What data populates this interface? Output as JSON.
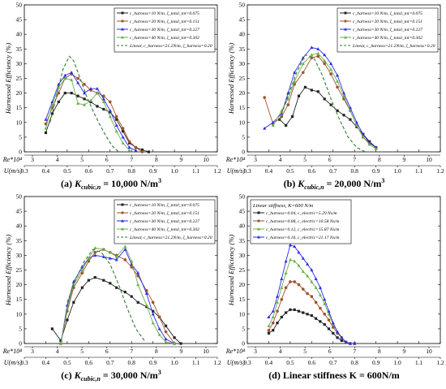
{
  "figure": {
    "panels": [
      {
        "caption_tag": "(a)",
        "caption_sym": "K",
        "caption_sub": "cubic,n",
        "caption_rest": " =    10,000 N/m",
        "caption_sup": "3"
      },
      {
        "caption_tag": "(b)",
        "caption_sym": "K",
        "caption_sub": "cubic,n",
        "caption_rest": " =    20,000 N/m",
        "caption_sup": "3"
      },
      {
        "caption_tag": "(c)",
        "caption_sym": "K",
        "caption_sub": "cubic,n",
        "caption_rest": " =   30,000 N/m",
        "caption_sup": "3"
      },
      {
        "caption_tag": "(d)",
        "caption_sym": "",
        "caption_sub": "",
        "caption_rest": "Linear stiffness K = 600N/m",
        "caption_sup": ""
      }
    ]
  },
  "chart_data": [
    {
      "type": "line",
      "ylabel": "Harnessed Efficiency (%)",
      "ylim": [
        0,
        50
      ],
      "yticks": [
        "0",
        "5",
        "10",
        "15",
        "20",
        "25",
        "30",
        "35",
        "40",
        "45",
        "50"
      ],
      "xlabel_top": "Re*10⁴",
      "xticks_top": [
        "3",
        "4",
        "5",
        "6",
        "7",
        "8",
        "9",
        "10"
      ],
      "xlabel_bottom": "U(m/s)",
      "xticks_bottom": [
        "0.3",
        "0.4",
        "0.5",
        "0.6",
        "0.7",
        "0.8",
        "0.9",
        "1.0",
        "1.1",
        "1.2"
      ],
      "legend_position": "top-right",
      "series": [
        {
          "name": "c_harness=10 N/m, ζ_total_tot=0.075",
          "color": "#222222",
          "marker": "square",
          "x": [
            0.4,
            0.43,
            0.46,
            0.49,
            0.52,
            0.55,
            0.58,
            0.61,
            0.64,
            0.67,
            0.7,
            0.73,
            0.76,
            0.79,
            0.82,
            0.85,
            0.88
          ],
          "y": [
            6.5,
            13,
            17,
            20,
            20,
            19,
            18,
            17,
            15.5,
            14.5,
            13.5,
            11,
            7,
            3,
            1.5,
            0.7,
            0
          ]
        },
        {
          "name": "c_harness=20 N/m, ζ_total_tot=0.151",
          "color": "#a0522d",
          "marker": "circle",
          "x": [
            0.4,
            0.43,
            0.46,
            0.49,
            0.52,
            0.55,
            0.58,
            0.61,
            0.64,
            0.67,
            0.7,
            0.73,
            0.76,
            0.79,
            0.82,
            0.85
          ],
          "y": [
            9.5,
            15,
            20,
            25,
            26.5,
            25,
            23,
            21,
            20,
            19,
            17,
            12,
            8,
            3.5,
            1.5,
            0
          ]
        },
        {
          "name": "c_harness=30 N/m, ζ_total_tot=0.227",
          "color": "#2a2aee",
          "marker": "triangle",
          "x": [
            0.4,
            0.43,
            0.46,
            0.49,
            0.52,
            0.55,
            0.58,
            0.61,
            0.64,
            0.67,
            0.7,
            0.73,
            0.76,
            0.79,
            0.82
          ],
          "y": [
            11,
            17,
            23,
            26,
            27,
            23.5,
            20,
            21.5,
            21.5,
            18,
            14,
            9,
            5,
            1.5,
            0.5
          ]
        },
        {
          "name": "c_harness=40 N/m, ζ_total_tot=0.302",
          "color": "#6ab04c",
          "marker": "triangle",
          "x": [
            0.4,
            0.43,
            0.46,
            0.49,
            0.52,
            0.55,
            0.58,
            0.61,
            0.64,
            0.67,
            0.7,
            0.73,
            0.76,
            0.79
          ],
          "y": [
            8,
            16,
            22,
            25,
            24.5,
            16.5,
            16,
            17.5,
            20,
            17,
            12,
            7,
            3,
            0.5
          ]
        },
        {
          "name": "Linear, c_harness=21.2N/m, ζ_harness=0.20",
          "color": "#2e7d32",
          "dashed": true,
          "x": [
            0.42,
            0.45,
            0.48,
            0.51,
            0.53,
            0.56,
            0.59,
            0.62,
            0.65,
            0.68,
            0.71,
            0.74
          ],
          "y": [
            10,
            19,
            28,
            32.5,
            31,
            25,
            19,
            14,
            9.5,
            5.5,
            2,
            0
          ]
        }
      ]
    },
    {
      "type": "line",
      "ylabel": "Harnessed Efficiency (%)",
      "ylim": [
        0,
        50
      ],
      "yticks": [
        "0",
        "5",
        "10",
        "15",
        "20",
        "25",
        "30",
        "35",
        "40",
        "45",
        "50"
      ],
      "xlabel_top": "Re*10⁴",
      "xticks_top": [
        "3",
        "4",
        "5",
        "6",
        "7",
        "8",
        "9",
        "10"
      ],
      "xlabel_bottom": "U(m/s)",
      "xticks_bottom": [
        "0.3",
        "0.4",
        "0.5",
        "0.6",
        "0.7",
        "0.8",
        "0.9",
        "1.0",
        "1.1",
        "1.2"
      ],
      "legend_position": "top-right",
      "series": [
        {
          "name": "c_harness=10 N/m, ζ_total_tot=0.075",
          "color": "#222222",
          "marker": "square",
          "x": [
            0.45,
            0.48,
            0.51,
            0.54,
            0.57,
            0.6,
            0.63,
            0.66,
            0.69,
            0.72,
            0.75,
            0.78,
            0.81,
            0.84,
            0.87,
            0.9
          ],
          "y": [
            11,
            9,
            12,
            19,
            22,
            21,
            20.5,
            18,
            16,
            14,
            12.5,
            11,
            8.5,
            6,
            3.5,
            1.5
          ]
        },
        {
          "name": "c_harness=20 N/m, ζ_total_tot=0.151",
          "color": "#a0522d",
          "marker": "circle",
          "x": [
            0.38,
            0.42,
            0.46,
            0.49,
            0.52,
            0.56,
            0.6,
            0.63,
            0.66,
            0.69,
            0.72,
            0.75,
            0.78,
            0.81,
            0.84,
            0.87,
            0.9
          ],
          "y": [
            18.5,
            9.5,
            12,
            16,
            23,
            27,
            32,
            32.5,
            30,
            26.5,
            22,
            18,
            14,
            9,
            5,
            3,
            1.5
          ]
        },
        {
          "name": "c_harness=30 N/m, ζ_total_tot=0.227",
          "color": "#2a2aee",
          "marker": "triangle",
          "x": [
            0.38,
            0.42,
            0.46,
            0.49,
            0.52,
            0.56,
            0.6,
            0.63,
            0.66,
            0.69,
            0.72,
            0.75,
            0.78,
            0.81,
            0.84,
            0.87,
            0.9
          ],
          "y": [
            8,
            10,
            13,
            20,
            27,
            32,
            35.5,
            35,
            33,
            30,
            26,
            20,
            15,
            10,
            6,
            3,
            1.5
          ]
        },
        {
          "name": "c_harness=40 N/m, ζ_total_tot=0.302",
          "color": "#6ab04c",
          "marker": "triangle",
          "x": [
            0.42,
            0.46,
            0.49,
            0.52,
            0.56,
            0.6,
            0.63,
            0.66,
            0.69,
            0.72,
            0.75,
            0.78,
            0.81,
            0.84,
            0.87,
            0.9
          ],
          "y": [
            9,
            14,
            18,
            24,
            30,
            33,
            33.5,
            31,
            28,
            24,
            19,
            14,
            9,
            5,
            2.5,
            1
          ]
        },
        {
          "name": "Linear, c_harness=21.2N/m, ζ_harness=0.20",
          "color": "#2e7d32",
          "dashed": true,
          "x": [
            0.45,
            0.49,
            0.53,
            0.57,
            0.61,
            0.65,
            0.69,
            0.73,
            0.77,
            0.81,
            0.85
          ],
          "y": [
            11,
            19,
            27,
            33,
            32,
            26,
            18,
            11,
            5,
            1.5,
            0
          ]
        }
      ]
    },
    {
      "type": "line",
      "ylabel": "Harnessed Efficiency (%)",
      "ylim": [
        0,
        50
      ],
      "yticks": [
        "0",
        "5",
        "10",
        "15",
        "20",
        "25",
        "30",
        "35",
        "40",
        "45",
        "50"
      ],
      "xlabel_top": "Re*10⁴",
      "xticks_top": [
        "3",
        "4",
        "5",
        "6",
        "7",
        "8",
        "9",
        "10"
      ],
      "xlabel_bottom": "U(m/s)",
      "xticks_bottom": [
        "0.3",
        "0.4",
        "0.5",
        "0.6",
        "0.7",
        "0.8",
        "0.9",
        "1.0",
        "1.1",
        "1.2"
      ],
      "legend_position": "top-right",
      "series": [
        {
          "name": "c_harness=10 N/m, ζ_total_tot=0.075",
          "color": "#222222",
          "marker": "square",
          "x": [
            0.43,
            0.47,
            0.5,
            0.53,
            0.57,
            0.6,
            0.63,
            0.67,
            0.7,
            0.73,
            0.77,
            0.8,
            0.83,
            0.87,
            0.9,
            0.93,
            0.96,
            1.0,
            1.03
          ],
          "y": [
            5,
            1,
            8,
            14,
            19,
            21.5,
            22.5,
            21.5,
            20.5,
            19,
            17.5,
            16,
            14,
            12.5,
            11,
            9,
            6,
            2,
            0
          ]
        },
        {
          "name": "c_harness=20 N/m, ζ_total_tot=0.151",
          "color": "#a0522d",
          "marker": "circle",
          "x": [
            0.47,
            0.5,
            0.53,
            0.57,
            0.6,
            0.63,
            0.67,
            0.7,
            0.73,
            0.77,
            0.8,
            0.83,
            0.87,
            0.9,
            0.93,
            0.96,
            1.0
          ],
          "y": [
            0,
            11,
            19,
            24,
            28,
            31,
            32,
            31,
            30,
            28.5,
            26,
            23,
            18,
            14,
            9,
            4,
            0
          ]
        },
        {
          "name": "c_harness=30 N/m, ζ_total_tot=0.227",
          "color": "#2a2aee",
          "marker": "triangle",
          "x": [
            0.47,
            0.5,
            0.53,
            0.57,
            0.6,
            0.63,
            0.67,
            0.7,
            0.73,
            0.77,
            0.8,
            0.83,
            0.87,
            0.9,
            0.93,
            0.96,
            1.0
          ],
          "y": [
            0,
            13,
            21,
            26,
            29,
            30,
            29.5,
            29,
            28.5,
            32,
            27,
            24,
            17,
            10,
            5,
            1.5,
            0
          ]
        },
        {
          "name": "c_harness=40 N/m, ζ_total_tot=0.302",
          "color": "#6ab04c",
          "marker": "triangle",
          "x": [
            0.47,
            0.5,
            0.53,
            0.57,
            0.6,
            0.63,
            0.67,
            0.7,
            0.73,
            0.77,
            0.8,
            0.83,
            0.87,
            0.9,
            0.93,
            0.96,
            1.0
          ],
          "y": [
            0,
            12,
            20,
            25,
            29,
            32.5,
            32,
            31,
            29.5,
            33,
            28,
            20,
            13,
            7,
            3,
            0.5,
            0
          ]
        },
        {
          "name": "Linear, c_harness=21.2N/m, ζ_harness=0.20",
          "color": "#2e7d32",
          "dashed": true,
          "x": [
            0.5,
            0.54,
            0.58,
            0.62,
            0.66,
            0.7,
            0.74,
            0.78,
            0.82,
            0.86
          ],
          "y": [
            14,
            22,
            28,
            32,
            31,
            27,
            20,
            12,
            5,
            1
          ]
        }
      ]
    },
    {
      "type": "line",
      "ylabel": "Harnessed Efficiency (%)",
      "ylim": [
        0,
        50
      ],
      "yticks": [
        "0",
        "5",
        "10",
        "15",
        "20",
        "25",
        "30",
        "35",
        "40",
        "45",
        "50"
      ],
      "xlabel_top": "Re*10⁴",
      "xticks_top": [
        "3",
        "4",
        "5",
        "6",
        "7",
        "8",
        "9",
        "10"
      ],
      "xlabel_bottom": "U(m/s)",
      "xticks_bottom": [
        "0.3",
        "0.4",
        "0.5",
        "0.6",
        "0.7",
        "0.8",
        "0.9",
        "1.0",
        "1.1",
        "1.2"
      ],
      "legend_title": "Linear stiffness, K=600 N/m",
      "legend_position": "top-left",
      "series": [
        {
          "name": "c_harness=0.04, c_electric=5.29 Ns/m",
          "color": "#222222",
          "marker": "square",
          "x": [
            0.4,
            0.42,
            0.44,
            0.46,
            0.48,
            0.5,
            0.52,
            0.54,
            0.56,
            0.58,
            0.6,
            0.62,
            0.64,
            0.66,
            0.68,
            0.7,
            0.72,
            0.74,
            0.76,
            0.78,
            0.8
          ],
          "y": [
            3.5,
            4.5,
            7,
            9,
            10.5,
            11.5,
            11.5,
            11,
            10.5,
            10,
            9.5,
            8.5,
            7.5,
            6.5,
            5,
            3.5,
            2,
            1,
            0.5,
            0,
            0
          ]
        },
        {
          "name": "c_harness=0.08, c_electric=10.58 Ns/m",
          "color": "#a0522d",
          "marker": "circle",
          "x": [
            0.4,
            0.42,
            0.44,
            0.46,
            0.48,
            0.5,
            0.52,
            0.54,
            0.56,
            0.58,
            0.6,
            0.62,
            0.64,
            0.66,
            0.68,
            0.7,
            0.72,
            0.74,
            0.76,
            0.78,
            0.8
          ],
          "y": [
            4.5,
            7,
            11,
            15,
            19,
            21,
            21,
            20,
            18.5,
            17,
            16,
            14,
            12,
            10,
            8,
            5.5,
            3.5,
            2,
            0.5,
            0,
            0
          ]
        },
        {
          "name": "c_harness=0.12, c_electric=15.87 Ns/m",
          "color": "#6ab04c",
          "marker": "triangle",
          "x": [
            0.4,
            0.42,
            0.44,
            0.46,
            0.48,
            0.5,
            0.52,
            0.54,
            0.56,
            0.58,
            0.6,
            0.62,
            0.64,
            0.66,
            0.68,
            0.7,
            0.72,
            0.74,
            0.76,
            0.78,
            0.8
          ],
          "y": [
            6,
            9,
            14,
            19,
            24,
            28.5,
            28,
            26.5,
            24.5,
            23,
            21,
            19,
            16.5,
            13.5,
            10,
            6.5,
            4,
            2,
            0.5,
            0,
            0
          ]
        },
        {
          "name": "c_harness=0.16, c_electric=21.17 Ns/m",
          "color": "#2a2aee",
          "marker": "triangle",
          "x": [
            0.4,
            0.42,
            0.44,
            0.46,
            0.48,
            0.5,
            0.52,
            0.54,
            0.56,
            0.58,
            0.6,
            0.62,
            0.64,
            0.66,
            0.68,
            0.7,
            0.72,
            0.74,
            0.76,
            0.78,
            0.8
          ],
          "y": [
            9,
            11,
            16,
            22,
            28,
            33.5,
            33,
            31,
            29,
            27,
            25,
            22,
            19,
            15,
            11,
            7,
            4,
            2,
            0.5,
            0,
            0
          ]
        }
      ]
    }
  ]
}
